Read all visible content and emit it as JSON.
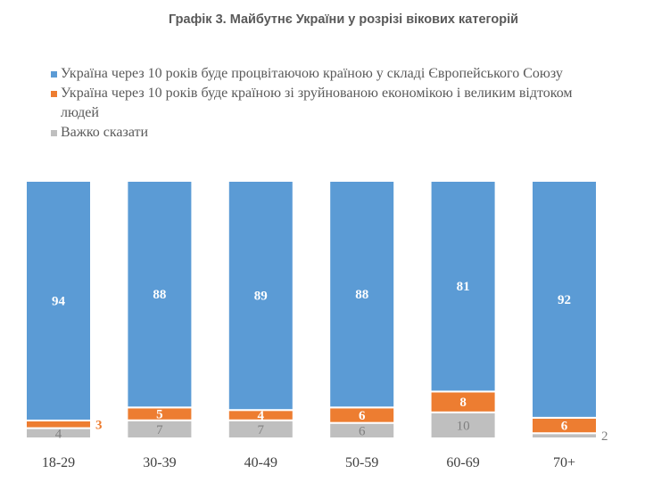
{
  "chart_data": {
    "type": "bar",
    "stacked": true,
    "title": "Графік 3. Майбутнє України у розрізі вікових категорій",
    "categories": [
      "18-29",
      "30-39",
      "40-49",
      "50-59",
      "60-69",
      "70+"
    ],
    "series": [
      {
        "name": "Україна через 10 років буде процвітаючою країною у складі Європейського Союзу",
        "color": "#5B9BD5",
        "values": [
          94,
          88,
          89,
          88,
          81,
          92
        ]
      },
      {
        "name": "Україна через 10 років буде країною зі зруйнованою економікою і великим відтоком людей",
        "color": "#ED7D31",
        "values": [
          3,
          5,
          4,
          6,
          8,
          6
        ]
      },
      {
        "name": "Важко сказати",
        "color": "#BFBFBF",
        "values": [
          4,
          7,
          7,
          6,
          10,
          2
        ]
      }
    ],
    "legend_position": "top",
    "grid": false,
    "xlabel": "",
    "ylabel": ""
  }
}
